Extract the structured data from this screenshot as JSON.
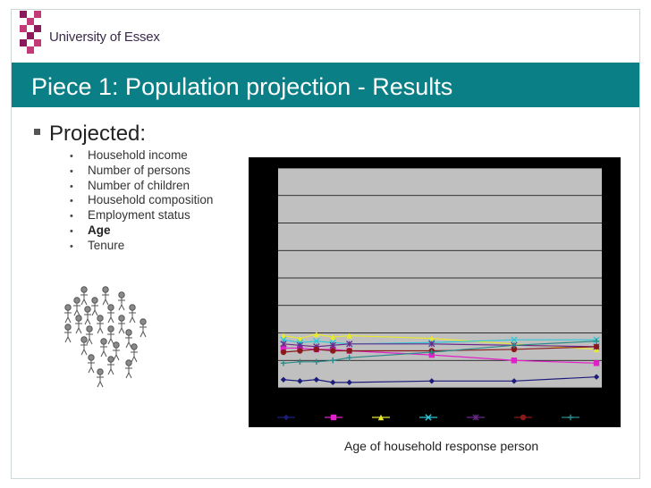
{
  "header": {
    "logo_text": "University of Essex",
    "logo_colors": [
      "#8a1a5c",
      "#c23a78"
    ]
  },
  "title_bar": {
    "title": "Piece 1: Population projection - Results",
    "background": "#0b7f86"
  },
  "content": {
    "main_bullet": "Projected:",
    "items": [
      {
        "label": "Household income",
        "bold": false
      },
      {
        "label": "Number of persons",
        "bold": false
      },
      {
        "label": "Number of children",
        "bold": false
      },
      {
        "label": "Household composition",
        "bold": false
      },
      {
        "label": "Employment status",
        "bold": false
      },
      {
        "label": "Age",
        "bold": true
      },
      {
        "label": "Tenure",
        "bold": false
      }
    ],
    "people_icon": "crowd-icon"
  },
  "chart_data": {
    "type": "line",
    "title": "",
    "xlabel": "Age of household response person",
    "ylabel": "",
    "grid": true,
    "legend": "bottom",
    "plot_background": "#c0c0c0",
    "frame_background": "#000000",
    "x": [
      1,
      2,
      3,
      4,
      5,
      10,
      15,
      20
    ],
    "ylim": [
      0,
      8
    ],
    "series": [
      {
        "color": "#1c1c7c",
        "marker": "diamond",
        "values": [
          0.3,
          0.25,
          0.3,
          0.2,
          0.2,
          0.25,
          0.25,
          0.4
        ]
      },
      {
        "color": "#e020c8",
        "marker": "square",
        "values": [
          1.45,
          1.45,
          1.4,
          1.4,
          1.35,
          1.2,
          1.0,
          0.9
        ]
      },
      {
        "color": "#e8e830",
        "marker": "triangle",
        "values": [
          1.9,
          1.8,
          1.95,
          1.85,
          1.9,
          1.8,
          1.6,
          1.4
        ]
      },
      {
        "color": "#30c8d8",
        "marker": "x",
        "values": [
          1.75,
          1.65,
          1.7,
          1.65,
          1.6,
          1.65,
          1.75,
          1.75
        ]
      },
      {
        "color": "#6a2a8a",
        "marker": "star",
        "values": [
          1.6,
          1.55,
          1.5,
          1.55,
          1.6,
          1.6,
          1.55,
          1.5
        ]
      },
      {
        "color": "#8a1a1a",
        "marker": "circle",
        "values": [
          1.3,
          1.35,
          1.4,
          1.35,
          1.35,
          1.35,
          1.4,
          1.5
        ]
      },
      {
        "color": "#2a8a8a",
        "marker": "plus",
        "values": [
          0.9,
          0.95,
          0.95,
          1.0,
          1.1,
          1.3,
          1.55,
          1.7
        ]
      }
    ]
  }
}
